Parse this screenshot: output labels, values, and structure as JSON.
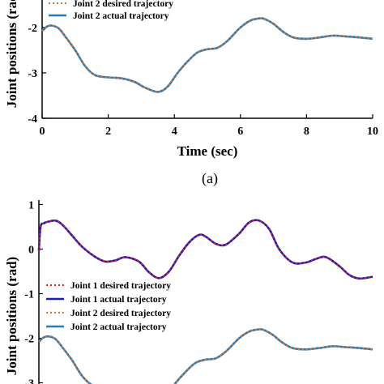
{
  "chart_data": [
    {
      "type": "line",
      "title": "",
      "xlabel": "Time (sec)",
      "ylabel": "Joint positions (rad)",
      "xlim": [
        0,
        10
      ],
      "ylim": [
        -4,
        -1.2
      ],
      "xticks": [
        0,
        2,
        4,
        6,
        8,
        10
      ],
      "yticks": [
        -4,
        -3,
        -2
      ],
      "grid": false,
      "legend": "top-left",
      "panel_label": "(a)",
      "series": [
        {
          "name": "Joint 2 desired trajectory",
          "style": "dotted",
          "color": "#d9772b",
          "x": [
            0,
            0.15,
            0.3,
            0.5,
            0.7,
            1.0,
            1.3,
            1.6,
            2.0,
            2.4,
            2.8,
            3.1,
            3.5,
            3.8,
            4.1,
            4.4,
            4.7,
            5.0,
            5.3,
            5.6,
            6.0,
            6.3,
            6.6,
            6.75,
            7.0,
            7.3,
            7.6,
            8.0,
            8.4,
            8.8,
            9.2,
            9.6,
            10.0
          ],
          "y": [
            -2.08,
            -1.98,
            -1.96,
            -2.02,
            -2.2,
            -2.5,
            -2.85,
            -3.05,
            -3.1,
            -3.12,
            -3.2,
            -3.32,
            -3.42,
            -3.3,
            -3.0,
            -2.75,
            -2.55,
            -2.48,
            -2.45,
            -2.3,
            -2.0,
            -1.85,
            -1.8,
            -1.82,
            -1.92,
            -2.1,
            -2.22,
            -2.25,
            -2.22,
            -2.18,
            -2.2,
            -2.22,
            -2.25
          ]
        },
        {
          "name": "Joint 2 actual trajectory",
          "style": "solid",
          "color": "#2a7ab8",
          "x": [
            0,
            0.15,
            0.3,
            0.5,
            0.7,
            1.0,
            1.3,
            1.6,
            2.0,
            2.4,
            2.8,
            3.1,
            3.5,
            3.8,
            4.1,
            4.4,
            4.7,
            5.0,
            5.3,
            5.6,
            6.0,
            6.3,
            6.6,
            6.75,
            7.0,
            7.3,
            7.6,
            8.0,
            8.4,
            8.8,
            9.2,
            9.6,
            10.0
          ],
          "y": [
            -2.08,
            -1.98,
            -1.96,
            -2.02,
            -2.2,
            -2.5,
            -2.85,
            -3.05,
            -3.1,
            -3.12,
            -3.2,
            -3.32,
            -3.42,
            -3.3,
            -3.0,
            -2.75,
            -2.55,
            -2.48,
            -2.45,
            -2.3,
            -2.0,
            -1.85,
            -1.8,
            -1.82,
            -1.92,
            -2.1,
            -2.22,
            -2.25,
            -2.22,
            -2.18,
            -2.2,
            -2.22,
            -2.25
          ]
        }
      ]
    },
    {
      "type": "line",
      "title": "",
      "xlabel": "",
      "ylabel": "Joint positions (rad)",
      "xlim": [
        0,
        10
      ],
      "ylim": [
        -3.1,
        1.1
      ],
      "yticks": [
        1,
        0,
        -1,
        -2,
        -3
      ],
      "grid": false,
      "legend": "center-left",
      "series": [
        {
          "name": "Joint 1 desired trajectory",
          "style": "dotted",
          "color": "#e02020",
          "x": [
            0,
            0.05,
            0.15,
            0.3,
            0.5,
            0.7,
            1.0,
            1.3,
            1.7,
            2.0,
            2.3,
            2.6,
            3.0,
            3.3,
            3.6,
            3.9,
            4.2,
            4.5,
            4.8,
            5.0,
            5.3,
            5.6,
            6.0,
            6.3,
            6.6,
            6.9,
            7.2,
            7.6,
            8.0,
            8.3,
            8.6,
            9.0,
            9.3,
            9.6,
            10.0
          ],
          "y": [
            -0.05,
            0.5,
            0.58,
            0.62,
            0.64,
            0.55,
            0.3,
            0.05,
            -0.18,
            -0.28,
            -0.25,
            -0.18,
            -0.28,
            -0.52,
            -0.65,
            -0.5,
            -0.15,
            0.15,
            0.32,
            0.28,
            0.12,
            0.1,
            0.35,
            0.6,
            0.64,
            0.45,
            0.0,
            -0.3,
            -0.3,
            -0.22,
            -0.18,
            -0.38,
            -0.58,
            -0.66,
            -0.62
          ]
        },
        {
          "name": "Joint 1 actual trajectory",
          "style": "solid",
          "color": "#1c1cb8",
          "x": [
            0,
            0.05,
            0.15,
            0.3,
            0.5,
            0.7,
            1.0,
            1.3,
            1.7,
            2.0,
            2.3,
            2.6,
            3.0,
            3.3,
            3.6,
            3.9,
            4.2,
            4.5,
            4.8,
            5.0,
            5.3,
            5.6,
            6.0,
            6.3,
            6.6,
            6.9,
            7.2,
            7.6,
            8.0,
            8.3,
            8.6,
            9.0,
            9.3,
            9.6,
            10.0
          ],
          "y": [
            -0.05,
            0.5,
            0.58,
            0.62,
            0.64,
            0.55,
            0.3,
            0.05,
            -0.18,
            -0.28,
            -0.25,
            -0.18,
            -0.28,
            -0.52,
            -0.65,
            -0.5,
            -0.15,
            0.15,
            0.32,
            0.28,
            0.12,
            0.1,
            0.35,
            0.6,
            0.64,
            0.45,
            0.0,
            -0.3,
            -0.3,
            -0.22,
            -0.18,
            -0.38,
            -0.58,
            -0.66,
            -0.62
          ]
        },
        {
          "name": "Joint 2 desired trajectory",
          "style": "dotted",
          "color": "#d9772b",
          "x": [
            0,
            0.15,
            0.3,
            0.5,
            0.7,
            1.0,
            1.3,
            1.6,
            2.0,
            2.4,
            2.8,
            3.1,
            3.5,
            3.8,
            4.1,
            4.4,
            4.7,
            5.0,
            5.3,
            5.6,
            6.0,
            6.3,
            6.6,
            6.75,
            7.0,
            7.3,
            7.6,
            8.0,
            8.4,
            8.8,
            9.2,
            9.6,
            10.0
          ],
          "y": [
            -2.08,
            -1.98,
            -1.96,
            -2.02,
            -2.2,
            -2.5,
            -2.85,
            -3.05,
            -3.1,
            -3.12,
            -3.2,
            -3.32,
            -3.42,
            -3.3,
            -3.0,
            -2.75,
            -2.55,
            -2.48,
            -2.45,
            -2.3,
            -2.0,
            -1.85,
            -1.8,
            -1.82,
            -1.92,
            -2.1,
            -2.22,
            -2.25,
            -2.22,
            -2.18,
            -2.2,
            -2.22,
            -2.25
          ]
        },
        {
          "name": "Joint 2 actual trajectory",
          "style": "solid",
          "color": "#2a7ab8",
          "x": [
            0,
            0.15,
            0.3,
            0.5,
            0.7,
            1.0,
            1.3,
            1.6,
            2.0,
            2.4,
            2.8,
            3.1,
            3.5,
            3.8,
            4.1,
            4.4,
            4.7,
            5.0,
            5.3,
            5.6,
            6.0,
            6.3,
            6.6,
            6.75,
            7.0,
            7.3,
            7.6,
            8.0,
            8.4,
            8.8,
            9.2,
            9.6,
            10.0
          ],
          "y": [
            -2.08,
            -1.98,
            -1.96,
            -2.02,
            -2.2,
            -2.5,
            -2.85,
            -3.05,
            -3.1,
            -3.12,
            -3.2,
            -3.32,
            -3.42,
            -3.3,
            -3.0,
            -2.75,
            -2.55,
            -2.48,
            -2.45,
            -2.3,
            -2.0,
            -1.85,
            -1.8,
            -1.82,
            -1.92,
            -2.1,
            -2.22,
            -2.25,
            -2.22,
            -2.18,
            -2.2,
            -2.22,
            -2.25
          ]
        }
      ]
    }
  ]
}
